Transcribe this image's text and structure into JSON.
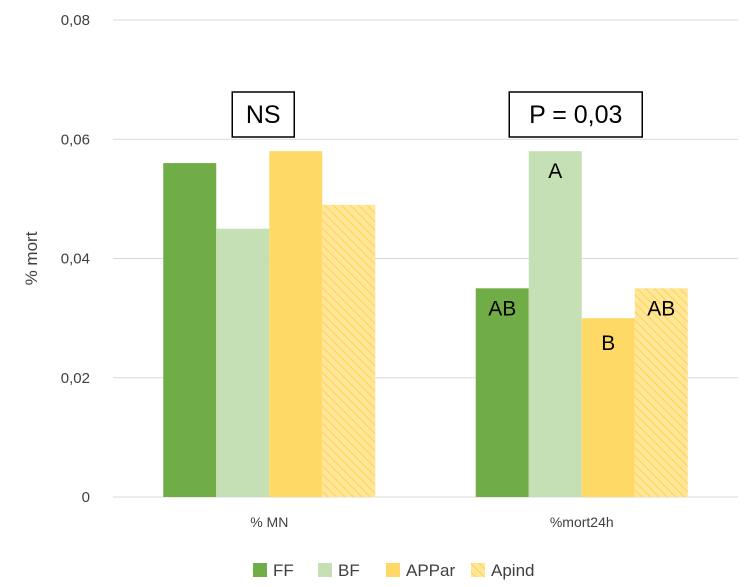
{
  "chart_data": {
    "type": "bar",
    "ylabel": "% mort",
    "xlabel": "",
    "title": "",
    "ylim": [
      0,
      0.08
    ],
    "yticks": [
      0,
      0.02,
      0.04,
      0.06,
      0.08
    ],
    "ytick_labels": [
      "0",
      "0,02",
      "0,04",
      "0,06",
      "0,08"
    ],
    "grid": "horizontal",
    "legend_position": "bottom",
    "categories": [
      "% MN",
      "%mort24h"
    ],
    "series": [
      {
        "name": "FF",
        "color": "#70ad47",
        "pattern": "solid",
        "values": [
          0.056,
          0.035
        ],
        "labels": [
          "",
          "AB"
        ]
      },
      {
        "name": "BF",
        "color": "#c5e0b4",
        "pattern": "solid",
        "values": [
          0.045,
          0.058
        ],
        "labels": [
          "",
          "A"
        ]
      },
      {
        "name": "APPar",
        "color": "#ffd966",
        "pattern": "solid",
        "values": [
          0.058,
          0.03
        ],
        "labels": [
          "",
          "B"
        ]
      },
      {
        "name": "Apind",
        "color": "#ffe699",
        "pattern": "hatch",
        "values": [
          0.049,
          0.035
        ],
        "labels": [
          "",
          "AB"
        ]
      }
    ],
    "annotations": [
      {
        "category": "% MN",
        "text": "NS"
      },
      {
        "category": "%mort24h",
        "text": "P = 0,03"
      }
    ]
  }
}
